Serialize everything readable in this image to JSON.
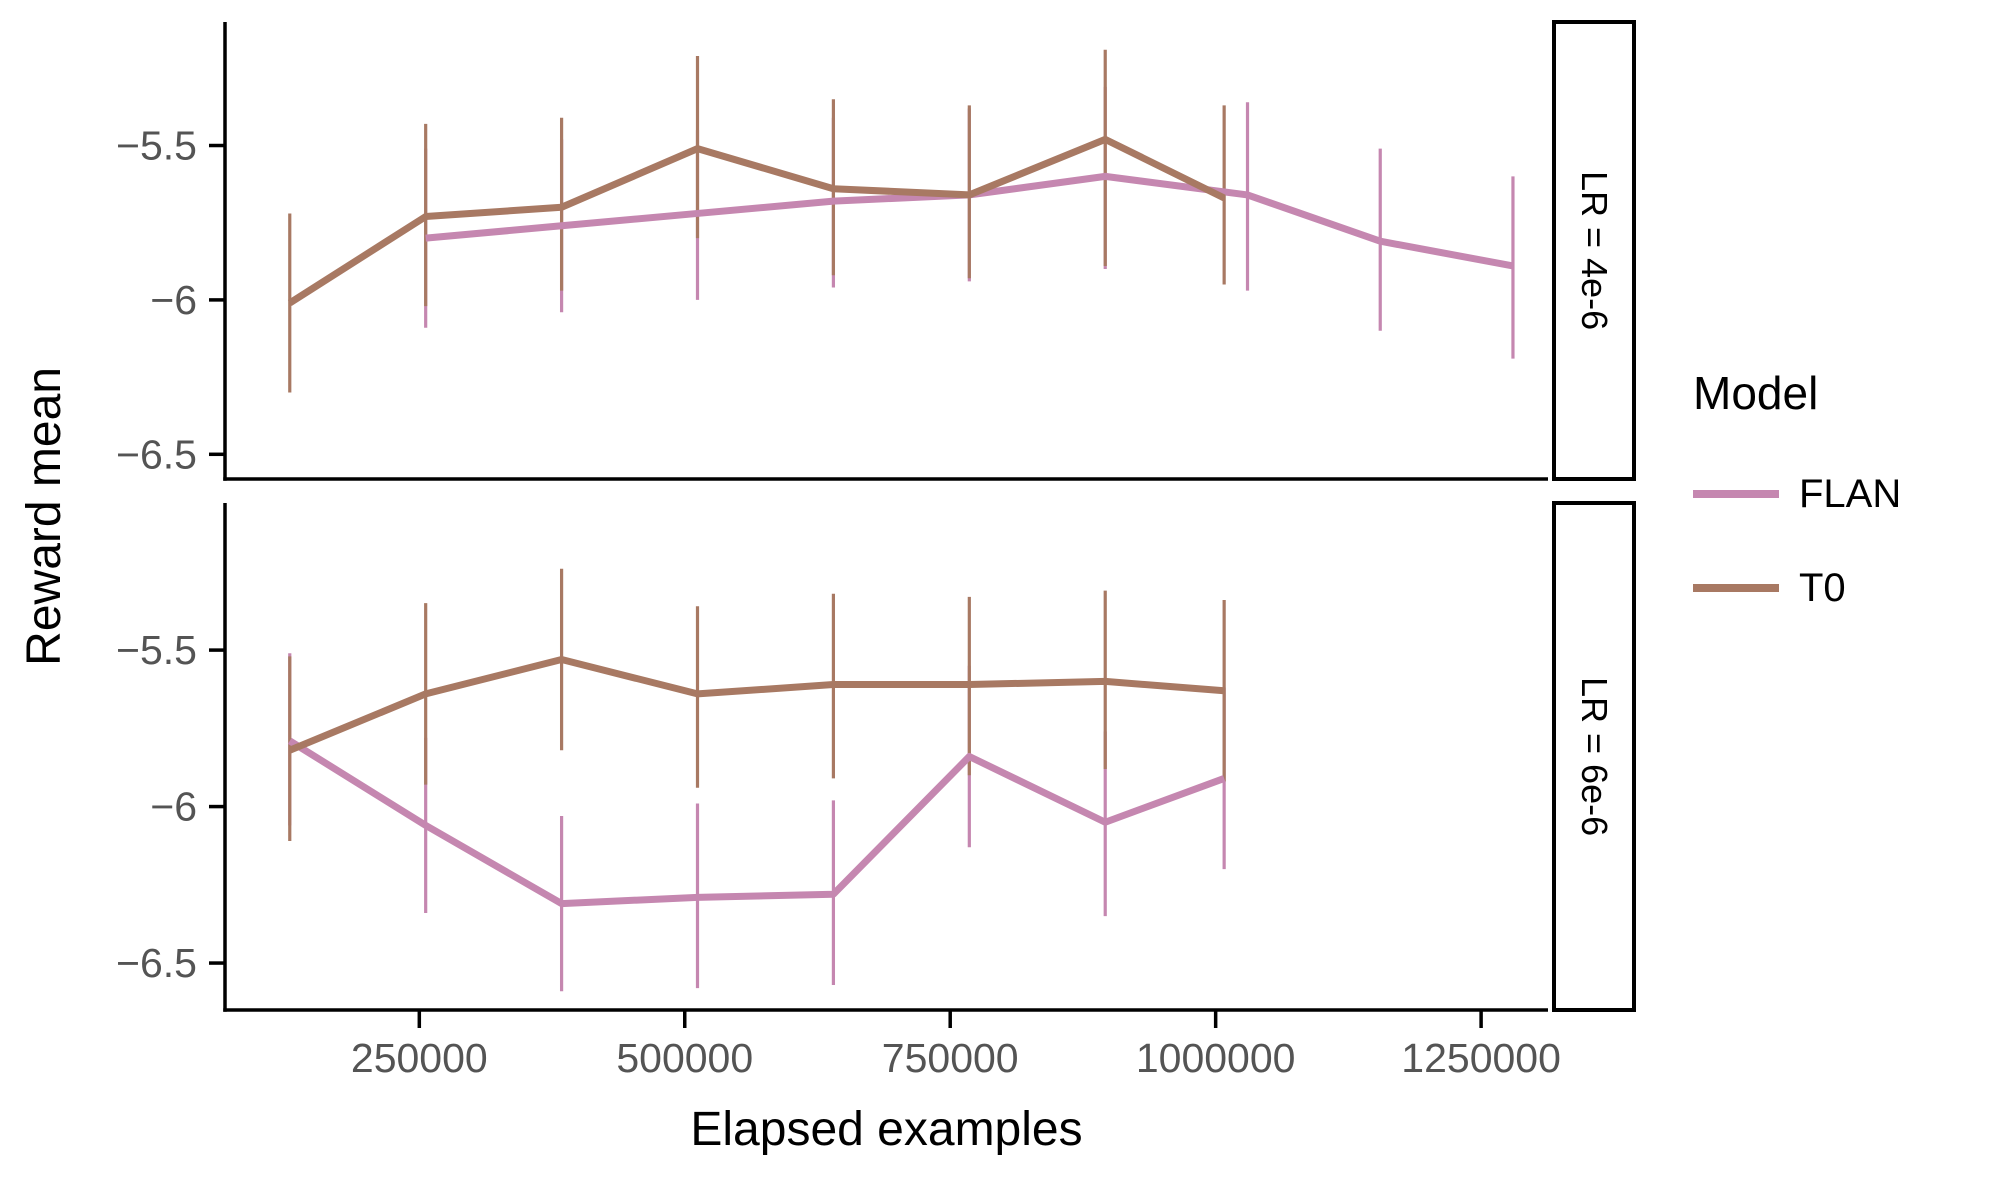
{
  "figure": {
    "background": "#FFFFFF"
  },
  "y_axis": {
    "title": "Reward mean",
    "tick_labels": [
      "−5.5",
      "−6",
      "−6.5"
    ],
    "tick_values": [
      -5.5,
      -6.0,
      -6.5
    ],
    "tick_color": "#545454",
    "axis_color": "#000000"
  },
  "x_axis": {
    "title": "Elapsed examples",
    "tick_labels": [
      "250000",
      "500000",
      "750000",
      "1000000",
      "1250000"
    ],
    "tick_values": [
      250000,
      500000,
      750000,
      1000000,
      1250000
    ],
    "tick_color": "#545454",
    "axis_color": "#000000"
  },
  "legend": {
    "title": "Model",
    "items": [
      {
        "label": "FLAN",
        "color": "#C587B0"
      },
      {
        "label": "T0",
        "color": "#A87963"
      }
    ]
  },
  "facets": [
    {
      "label": "LR = 4e-6"
    },
    {
      "label": "LR = 6e-6"
    }
  ],
  "chart_data": [
    {
      "type": "line",
      "facet": "LR = 4e-6",
      "xlim": [
        67000,
        1313000
      ],
      "ylim": [
        -6.58,
        -5.1
      ],
      "xticks": [
        250000,
        500000,
        750000,
        1000000,
        1250000
      ],
      "yticks": [
        -5.5,
        -6.0,
        -6.5
      ],
      "grid": false,
      "legend_position": "right",
      "series": [
        {
          "name": "FLAN",
          "color": "#C587B0",
          "x": [
            256000,
            384000,
            512000,
            640000,
            768000,
            896000,
            1030000,
            1155000,
            1280000
          ],
          "y": [
            -5.8,
            -5.76,
            -5.72,
            -5.68,
            -5.66,
            -5.6,
            -5.66,
            -5.81,
            -5.89
          ],
          "err_lo": [
            -6.09,
            -6.04,
            -6.0,
            -5.96,
            -5.94,
            -5.9,
            -5.97,
            -6.1,
            -6.19
          ],
          "err_hi": [
            -5.51,
            -5.48,
            -5.45,
            -5.41,
            -5.38,
            -5.31,
            -5.36,
            -5.51,
            -5.6
          ]
        },
        {
          "name": "T0",
          "color": "#A87963",
          "x": [
            128000,
            256000,
            384000,
            512000,
            640000,
            768000,
            896000,
            1008000
          ],
          "y": [
            -6.01,
            -5.73,
            -5.7,
            -5.51,
            -5.64,
            -5.66,
            -5.48,
            -5.67
          ],
          "err_lo": [
            -6.3,
            -6.02,
            -5.97,
            -5.8,
            -5.92,
            -5.93,
            -5.89,
            -5.95
          ],
          "err_hi": [
            -5.72,
            -5.43,
            -5.41,
            -5.21,
            -5.35,
            -5.37,
            -5.19,
            -5.37
          ]
        }
      ]
    },
    {
      "type": "line",
      "facet": "LR = 6e-6",
      "xlim": [
        67000,
        1313000
      ],
      "ylim": [
        -6.65,
        -5.03
      ],
      "xticks": [
        250000,
        500000,
        750000,
        1000000,
        1250000
      ],
      "yticks": [
        -5.5,
        -6.0,
        -6.5
      ],
      "grid": false,
      "legend_position": "right",
      "series": [
        {
          "name": "FLAN",
          "color": "#C587B0",
          "x": [
            128000,
            256000,
            384000,
            512000,
            640000,
            768000,
            896000,
            1008000
          ],
          "y": [
            -5.79,
            -6.06,
            -6.31,
            -6.29,
            -6.28,
            -5.84,
            -6.05,
            -5.91
          ],
          "err_lo": [
            -6.06,
            -6.34,
            -6.59,
            -6.58,
            -6.57,
            -6.13,
            -6.35,
            -6.2
          ],
          "err_hi": [
            -5.51,
            -5.78,
            -6.03,
            -5.99,
            -5.98,
            -5.55,
            -5.76,
            -5.62
          ]
        },
        {
          "name": "T0",
          "color": "#A87963",
          "x": [
            128000,
            256000,
            384000,
            512000,
            640000,
            768000,
            896000,
            1008000
          ],
          "y": [
            -5.82,
            -5.64,
            -5.53,
            -5.64,
            -5.61,
            -5.61,
            -5.6,
            -5.63
          ],
          "err_lo": [
            -6.11,
            -5.93,
            -5.82,
            -5.94,
            -5.91,
            -5.9,
            -5.88,
            -5.92
          ],
          "err_hi": [
            -5.52,
            -5.35,
            -5.24,
            -5.36,
            -5.32,
            -5.33,
            -5.31,
            -5.34
          ]
        }
      ]
    }
  ]
}
